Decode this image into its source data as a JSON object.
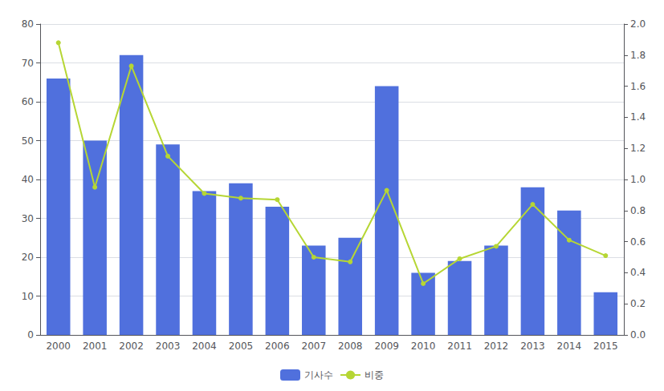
{
  "chart_data": {
    "type": "bar",
    "categories": [
      "2000",
      "2001",
      "2002",
      "2003",
      "2004",
      "2005",
      "2006",
      "2007",
      "2008",
      "2009",
      "2010",
      "2011",
      "2012",
      "2013",
      "2014",
      "2015"
    ],
    "series": [
      {
        "name": "기사수",
        "type": "bar",
        "values": [
          66,
          50,
          72,
          49,
          37,
          39,
          33,
          23,
          25,
          64,
          16,
          19,
          23,
          38,
          32,
          11
        ]
      },
      {
        "name": "비중",
        "type": "line",
        "axis": "y2",
        "marker": "circle",
        "values": [
          1.88,
          0.95,
          1.73,
          1.15,
          0.91,
          0.88,
          0.87,
          0.5,
          0.47,
          0.93,
          0.33,
          0.49,
          0.57,
          0.84,
          0.61,
          0.51
        ]
      }
    ],
    "ylim": [
      0,
      80
    ],
    "yticks": [
      0,
      10,
      20,
      30,
      40,
      50,
      60,
      70,
      80
    ],
    "y2lim": [
      0.0,
      2.0
    ],
    "y2ticks": [
      {
        "value": 0.0,
        "label": "0.0"
      },
      0.2,
      0.4,
      0.6,
      0.8,
      {
        "value": 1.0,
        "label": "1.0"
      },
      1.2,
      1.4,
      1.6,
      1.8,
      {
        "value": 2.0,
        "label": "2.0"
      }
    ],
    "grid": true,
    "legend": "bottom"
  }
}
